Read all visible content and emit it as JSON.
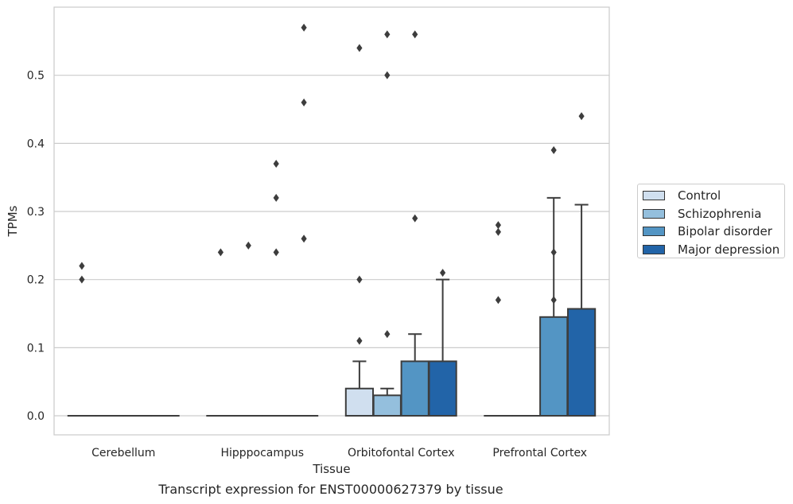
{
  "caption": "Transcript expression for ENST00000627379 by tissue",
  "chart_data": {
    "type": "box",
    "xlabel": "Tissue",
    "ylabel": "TPMs",
    "ylim": [
      -0.028,
      0.6
    ],
    "yticks": [
      0.0,
      0.1,
      0.2,
      0.3,
      0.4,
      0.5
    ],
    "ytick_labels": [
      "0.0",
      "0.1",
      "0.2",
      "0.3",
      "0.4",
      "0.5"
    ],
    "categories": [
      "Cerebellum",
      "Hipppocampus",
      "Orbitofontal Cortex",
      "Prefrontal Cortex"
    ],
    "grid": "horizontal",
    "legend_position": "outside-right",
    "series": [
      {
        "name": "Control",
        "color": "#d0dfef",
        "boxes": [
          {
            "q1": 0,
            "q3": 0,
            "median": 0,
            "whisker_low": 0,
            "whisker_high": 0,
            "outliers": [
              0.2,
              0.22
            ]
          },
          {
            "q1": 0,
            "q3": 0,
            "median": 0,
            "whisker_low": 0,
            "whisker_high": 0,
            "outliers": [
              0.24
            ]
          },
          {
            "q1": 0,
            "q3": 0.04,
            "median": 0,
            "whisker_low": 0,
            "whisker_high": 0.08,
            "outliers": [
              0.11,
              0.2,
              0.54
            ]
          },
          {
            "q1": 0,
            "q3": 0,
            "median": 0,
            "whisker_low": 0,
            "whisker_high": 0,
            "outliers": [
              0.17,
              0.27,
              0.28
            ]
          }
        ]
      },
      {
        "name": "Schizophrenia",
        "color": "#94bfdd",
        "boxes": [
          {
            "q1": 0,
            "q3": 0,
            "median": 0,
            "whisker_low": 0,
            "whisker_high": 0,
            "outliers": []
          },
          {
            "q1": 0,
            "q3": 0,
            "median": 0,
            "whisker_low": 0,
            "whisker_high": 0,
            "outliers": [
              0.25
            ]
          },
          {
            "q1": 0,
            "q3": 0.03,
            "median": 0,
            "whisker_low": 0,
            "whisker_high": 0.04,
            "outliers": [
              0.12,
              0.5,
              0.56
            ]
          },
          {
            "q1": 0,
            "q3": 0,
            "median": 0,
            "whisker_low": 0,
            "whisker_high": 0,
            "outliers": []
          }
        ]
      },
      {
        "name": "Bipolar disorder",
        "color": "#5395c4",
        "boxes": [
          {
            "q1": 0,
            "q3": 0,
            "median": 0,
            "whisker_low": 0,
            "whisker_high": 0,
            "outliers": []
          },
          {
            "q1": 0,
            "q3": 0,
            "median": 0,
            "whisker_low": 0,
            "whisker_high": 0,
            "outliers": [
              0.24,
              0.32,
              0.37
            ]
          },
          {
            "q1": 0,
            "q3": 0.08,
            "median": 0,
            "whisker_low": 0,
            "whisker_high": 0.12,
            "outliers": [
              0.29,
              0.56
            ]
          },
          {
            "q1": 0,
            "q3": 0.145,
            "median": 0,
            "whisker_low": 0,
            "whisker_high": 0.32,
            "outliers": [
              0.17,
              0.24,
              0.39
            ]
          }
        ]
      },
      {
        "name": "Major depression",
        "color": "#2264a8",
        "boxes": [
          {
            "q1": 0,
            "q3": 0,
            "median": 0,
            "whisker_low": 0,
            "whisker_high": 0,
            "outliers": []
          },
          {
            "q1": 0,
            "q3": 0,
            "median": 0,
            "whisker_low": 0,
            "whisker_high": 0,
            "outliers": [
              0.26,
              0.46,
              0.57
            ]
          },
          {
            "q1": 0,
            "q3": 0.08,
            "median": 0,
            "whisker_low": 0,
            "whisker_high": 0.2,
            "outliers": [
              0.21
            ]
          },
          {
            "q1": 0,
            "q3": 0.157,
            "median": 0,
            "whisker_low": 0,
            "whisker_high": 0.31,
            "outliers": [
              0.44
            ]
          }
        ]
      }
    ]
  }
}
